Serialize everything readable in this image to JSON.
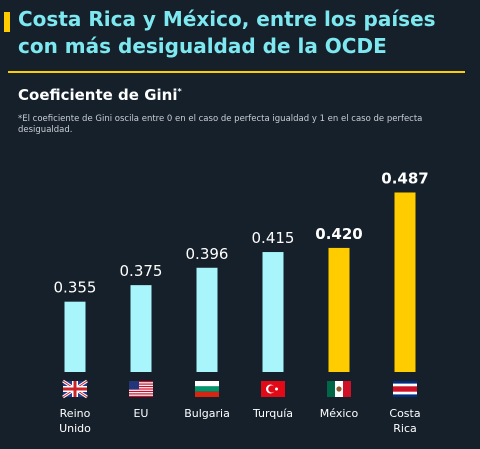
{
  "header": {
    "title": "Costa Rica y México, entre los países con más desigualdad de la OCDE",
    "subtitle": "Coeficiente de Gini",
    "subtitle_mark": "*",
    "note": "*El coeficiente de Gini oscila entre 0 en el caso de perfecta igualdad y 1 en el caso de perfecta desigualdad."
  },
  "colors": {
    "background": "#15202b",
    "title": "#7ee8f0",
    "accent": "#ffcc00",
    "bar_default": "#a8f6fb",
    "bar_highlight": "#ffcc00"
  },
  "chart_data": {
    "type": "bar",
    "title": "Coeficiente de Gini",
    "categories": [
      "Reino Unido",
      "EU",
      "Bulgaria",
      "Turquía",
      "México",
      "Costa Rica"
    ],
    "category_lines": [
      [
        "Reino",
        "Unido"
      ],
      [
        "EU"
      ],
      [
        "Bulgaria"
      ],
      [
        "Turquía"
      ],
      [
        "México"
      ],
      [
        "Costa",
        "Rica"
      ]
    ],
    "values": [
      0.355,
      0.375,
      0.396,
      0.415,
      0.42,
      0.487
    ],
    "value_labels": [
      "0.355",
      "0.375",
      "0.396",
      "0.415",
      "0.420",
      "0.487"
    ],
    "highlighted": [
      false,
      false,
      false,
      false,
      true,
      true
    ],
    "flags": [
      "uk-flag-icon",
      "usa-flag-icon",
      "bulgaria-flag-icon",
      "turkey-flag-icon",
      "mexico-flag-icon",
      "costa-rica-flag-icon"
    ],
    "xlabel": "",
    "ylabel": "",
    "ylim": [
      0.27,
      0.49
    ],
    "grid": false,
    "legend": "none"
  }
}
